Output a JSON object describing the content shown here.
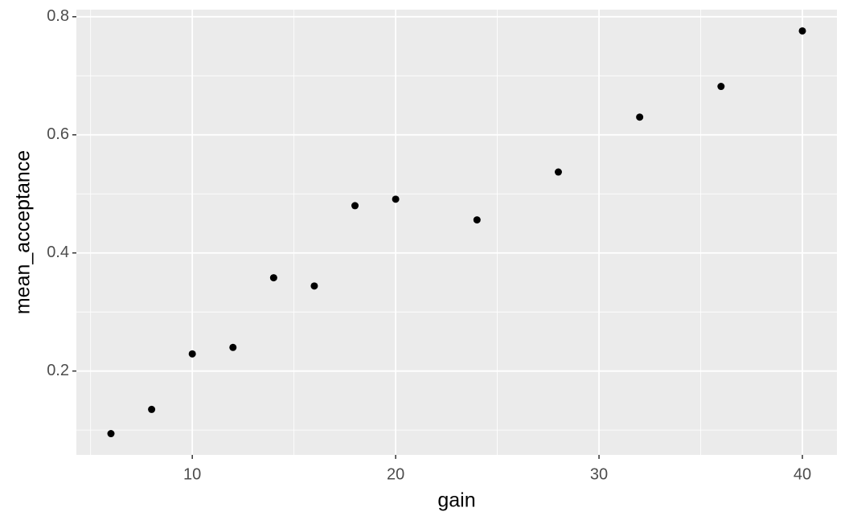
{
  "chart_data": {
    "type": "scatter",
    "x_label": "gain",
    "y_label": "mean_acceptance",
    "x": [
      6,
      8,
      10,
      12,
      14,
      16,
      18,
      20,
      24,
      28,
      32,
      36,
      40
    ],
    "values": [
      0.094,
      0.135,
      0.229,
      0.24,
      0.358,
      0.344,
      0.48,
      0.491,
      0.456,
      0.537,
      0.63,
      0.682,
      0.776
    ],
    "color": "#000000",
    "xlim": [
      4.3,
      41.7
    ],
    "ylim": [
      0.058,
      0.812
    ],
    "xticks": [
      10,
      20,
      30,
      40
    ],
    "yticks": [
      0.2,
      0.4,
      0.6,
      0.8
    ],
    "x_minor_grid": [
      5,
      15,
      25,
      35
    ],
    "y_minor_grid": [
      0.1,
      0.3,
      0.5,
      0.7
    ],
    "grid": true
  }
}
